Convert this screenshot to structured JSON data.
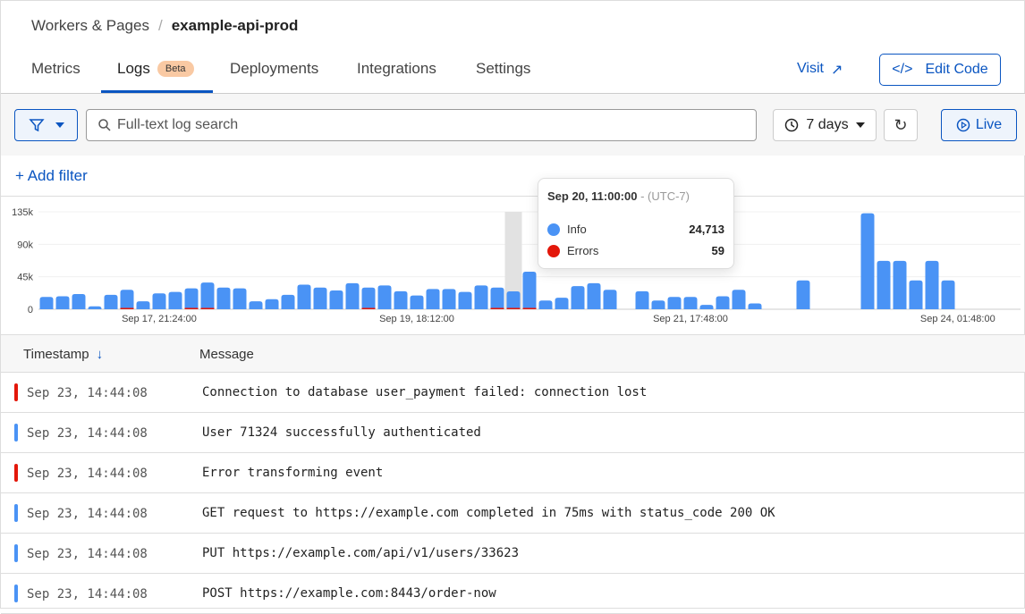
{
  "breadcrumb": {
    "parent": "Workers & Pages",
    "separator": "/",
    "current": "example-api-prod"
  },
  "tabs": [
    {
      "label": "Metrics"
    },
    {
      "label": "Logs",
      "badge": "Beta",
      "active": true
    },
    {
      "label": "Deployments"
    },
    {
      "label": "Integrations"
    },
    {
      "label": "Settings"
    }
  ],
  "header_actions": {
    "visit": "Visit",
    "edit_code": "Edit Code"
  },
  "toolbar": {
    "search_placeholder": "Full-text log search",
    "search_value": "",
    "range": "7 days",
    "live": "Live",
    "add_filter": "+ Add filter"
  },
  "colors": {
    "accent": "#0a55c1",
    "info": "#4a93f5",
    "error": "#e3170a"
  },
  "chart_data": {
    "type": "bar",
    "stacked": true,
    "yticks": [
      "135k",
      "90k",
      "45k",
      "0"
    ],
    "ylim": [
      0,
      135000
    ],
    "xticks": [
      "Sep 17, 21:24:00",
      "Sep 19, 18:12:00",
      "Sep 21, 17:48:00",
      "Sep 24, 01:48:00"
    ],
    "series": [
      {
        "name": "Info",
        "values": [
          17000,
          18000,
          21000,
          4000,
          20000,
          27000,
          11000,
          22000,
          24000,
          29000,
          37000,
          30000,
          29000,
          11000,
          14000,
          20000,
          34000,
          30000,
          26000,
          36000,
          30000,
          33000,
          25000,
          19000,
          28000,
          28000,
          24000,
          33000,
          30000,
          24713,
          52000,
          12000,
          16000,
          32000,
          36000,
          27000,
          null,
          25000,
          12000,
          17000,
          17000,
          6000,
          18000,
          27000,
          8000,
          null,
          null,
          40000,
          null,
          null,
          null,
          133000,
          67000,
          67000,
          40000,
          67000,
          40000
        ]
      },
      {
        "name": "Errors",
        "values": [
          0,
          0,
          0,
          0,
          0,
          800,
          0,
          0,
          0,
          500,
          500,
          0,
          0,
          0,
          0,
          0,
          0,
          0,
          0,
          0,
          500,
          0,
          0,
          0,
          0,
          0,
          0,
          0,
          500,
          59,
          1500,
          0,
          0,
          0,
          0,
          0,
          null,
          0,
          0,
          0,
          0,
          0,
          0,
          0,
          0,
          null,
          null,
          0,
          null,
          null,
          null,
          0,
          0,
          0,
          0,
          0,
          0
        ]
      }
    ],
    "highlighted_index": 29,
    "tooltip": {
      "time": "Sep 20, 11:00:00",
      "tz": "- (UTC-7)",
      "info_label": "Info",
      "info_value": "24,713",
      "errors_label": "Errors",
      "errors_value": "59"
    }
  },
  "table": {
    "columns": {
      "timestamp": "Timestamp",
      "message": "Message"
    },
    "rows": [
      {
        "level": "error",
        "timestamp": "Sep 23, 14:44:08",
        "message": "Connection to database user_payment failed: connection lost"
      },
      {
        "level": "info",
        "timestamp": "Sep 23, 14:44:08",
        "message": "User 71324 successfully authenticated"
      },
      {
        "level": "error",
        "timestamp": "Sep 23, 14:44:08",
        "message": "Error transforming event"
      },
      {
        "level": "info",
        "timestamp": "Sep 23, 14:44:08",
        "message": "GET request to https://example.com completed in 75ms with status_code 200 OK"
      },
      {
        "level": "info",
        "timestamp": "Sep 23, 14:44:08",
        "message": "PUT https://example.com/api/v1/users/33623"
      },
      {
        "level": "info",
        "timestamp": "Sep 23, 14:44:08",
        "message": "POST https://example.com:8443/order-now"
      }
    ]
  }
}
